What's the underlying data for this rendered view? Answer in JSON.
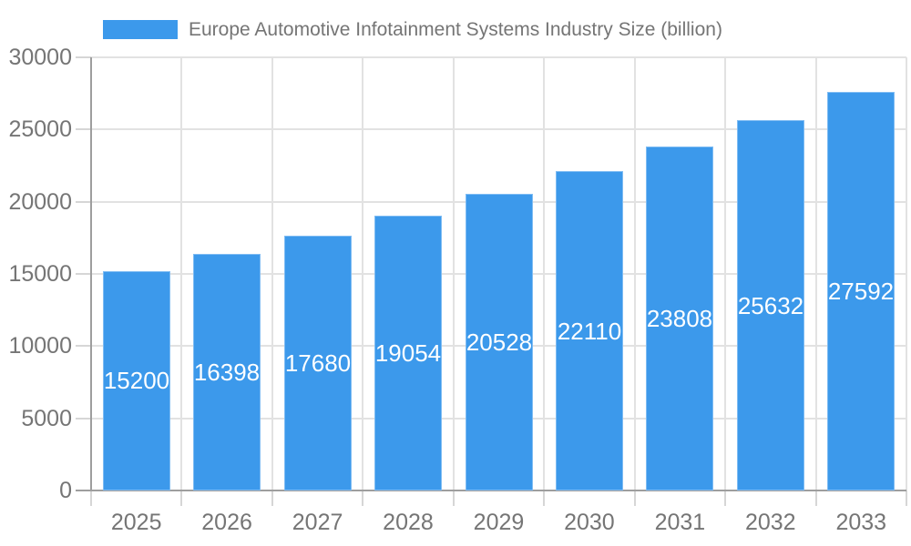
{
  "legend": {
    "label": "Europe Automotive Infotainment Systems Industry Size (billion)"
  },
  "chart_data": {
    "type": "bar",
    "title": "Europe Automotive Infotainment Systems Industry Size (billion)",
    "categories": [
      "2025",
      "2026",
      "2027",
      "2028",
      "2029",
      "2030",
      "2031",
      "2032",
      "2033"
    ],
    "values": [
      15200,
      16398,
      17680,
      19054,
      20528,
      22110,
      23808,
      25632,
      27592
    ],
    "xlabel": "",
    "ylabel": "",
    "ylim": [
      0,
      30000
    ],
    "yticks": [
      0,
      5000,
      10000,
      15000,
      20000,
      25000,
      30000
    ],
    "grid": true,
    "legend_position": "top-left",
    "colors": {
      "bar": "#3C99EB",
      "bar_edge": "#7FBCF3",
      "value_label": "#FFFFFF",
      "axis_text": "#757575",
      "axis_line": "#9E9E9E",
      "gridline": "#E2E2E2",
      "tick": "#D6D6D6",
      "background": "#FFFFFF"
    }
  }
}
